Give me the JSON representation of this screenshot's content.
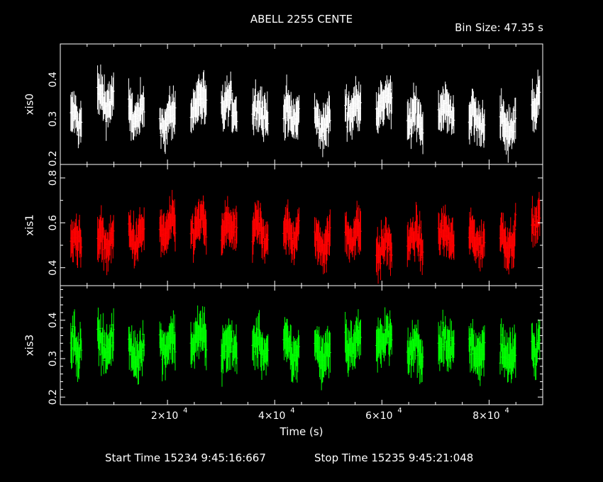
{
  "header": {
    "title": "ABELL 2255 CENTE",
    "bin_size": "Bin Size: 47.35 s"
  },
  "footer": {
    "start": "Start Time 15234   9:45:16:667",
    "stop": "Stop Time 15235   9:45:21:048"
  },
  "chart_data": {
    "type": "line",
    "xlabel": "Time (s)",
    "xlim": [
      0,
      90000
    ],
    "x_ticks": [
      20000,
      40000,
      60000,
      80000
    ],
    "x_tick_labels": [
      {
        "mantissa": "2×10",
        "exponent": "4"
      },
      {
        "mantissa": "4×10",
        "exponent": "4"
      },
      {
        "mantissa": "6×10",
        "exponent": "4"
      },
      {
        "mantissa": "8×10",
        "exponent": "4"
      }
    ],
    "bin_size_s": 47.35,
    "orbit_segments": [
      {
        "start": 1900,
        "end": 4000
      },
      {
        "start": 6900,
        "end": 10000
      },
      {
        "start": 12700,
        "end": 15700
      },
      {
        "start": 18500,
        "end": 21500
      },
      {
        "start": 24300,
        "end": 27300
      },
      {
        "start": 30000,
        "end": 33000
      },
      {
        "start": 35800,
        "end": 38800
      },
      {
        "start": 41600,
        "end": 44600
      },
      {
        "start": 47400,
        "end": 50400
      },
      {
        "start": 53100,
        "end": 56100
      },
      {
        "start": 58900,
        "end": 61900
      },
      {
        "start": 64700,
        "end": 67700
      },
      {
        "start": 70500,
        "end": 73500
      },
      {
        "start": 76200,
        "end": 79200
      },
      {
        "start": 82000,
        "end": 85000
      },
      {
        "start": 87900,
        "end": 89500
      }
    ],
    "panels": [
      {
        "name": "xis0",
        "color": "#ffffff",
        "ylim": [
          0.185,
          0.49
        ],
        "yticks": [
          0.2,
          0.3,
          0.4
        ],
        "ytick_labels": [
          "0.2",
          "0.3",
          "0.4"
        ],
        "seg_means": [
          0.3,
          0.35,
          0.31,
          0.3,
          0.34,
          0.33,
          0.32,
          0.31,
          0.29,
          0.33,
          0.34,
          0.3,
          0.32,
          0.3,
          0.28,
          0.34
        ],
        "spread": 0.07
      },
      {
        "name": "xis1",
        "color": "#ff0000",
        "ylim": [
          0.32,
          0.86
        ],
        "yticks": [
          0.4,
          0.6,
          0.8
        ],
        "ytick_labels": [
          "0.4",
          "0.6",
          "0.8"
        ],
        "seg_means": [
          0.53,
          0.52,
          0.54,
          0.57,
          0.58,
          0.57,
          0.56,
          0.55,
          0.52,
          0.55,
          0.49,
          0.52,
          0.54,
          0.52,
          0.53,
          0.6
        ],
        "spread": 0.12
      },
      {
        "name": "xis3",
        "color": "#00ff00",
        "ylim": [
          0.18,
          0.49
        ],
        "yticks": [
          0.2,
          0.3,
          0.4
        ],
        "ytick_labels": [
          "0.2",
          "0.3",
          "0.4"
        ],
        "seg_means": [
          0.33,
          0.34,
          0.32,
          0.34,
          0.35,
          0.33,
          0.33,
          0.32,
          0.32,
          0.34,
          0.35,
          0.32,
          0.34,
          0.32,
          0.31,
          0.33
        ],
        "spread": 0.075
      }
    ]
  }
}
